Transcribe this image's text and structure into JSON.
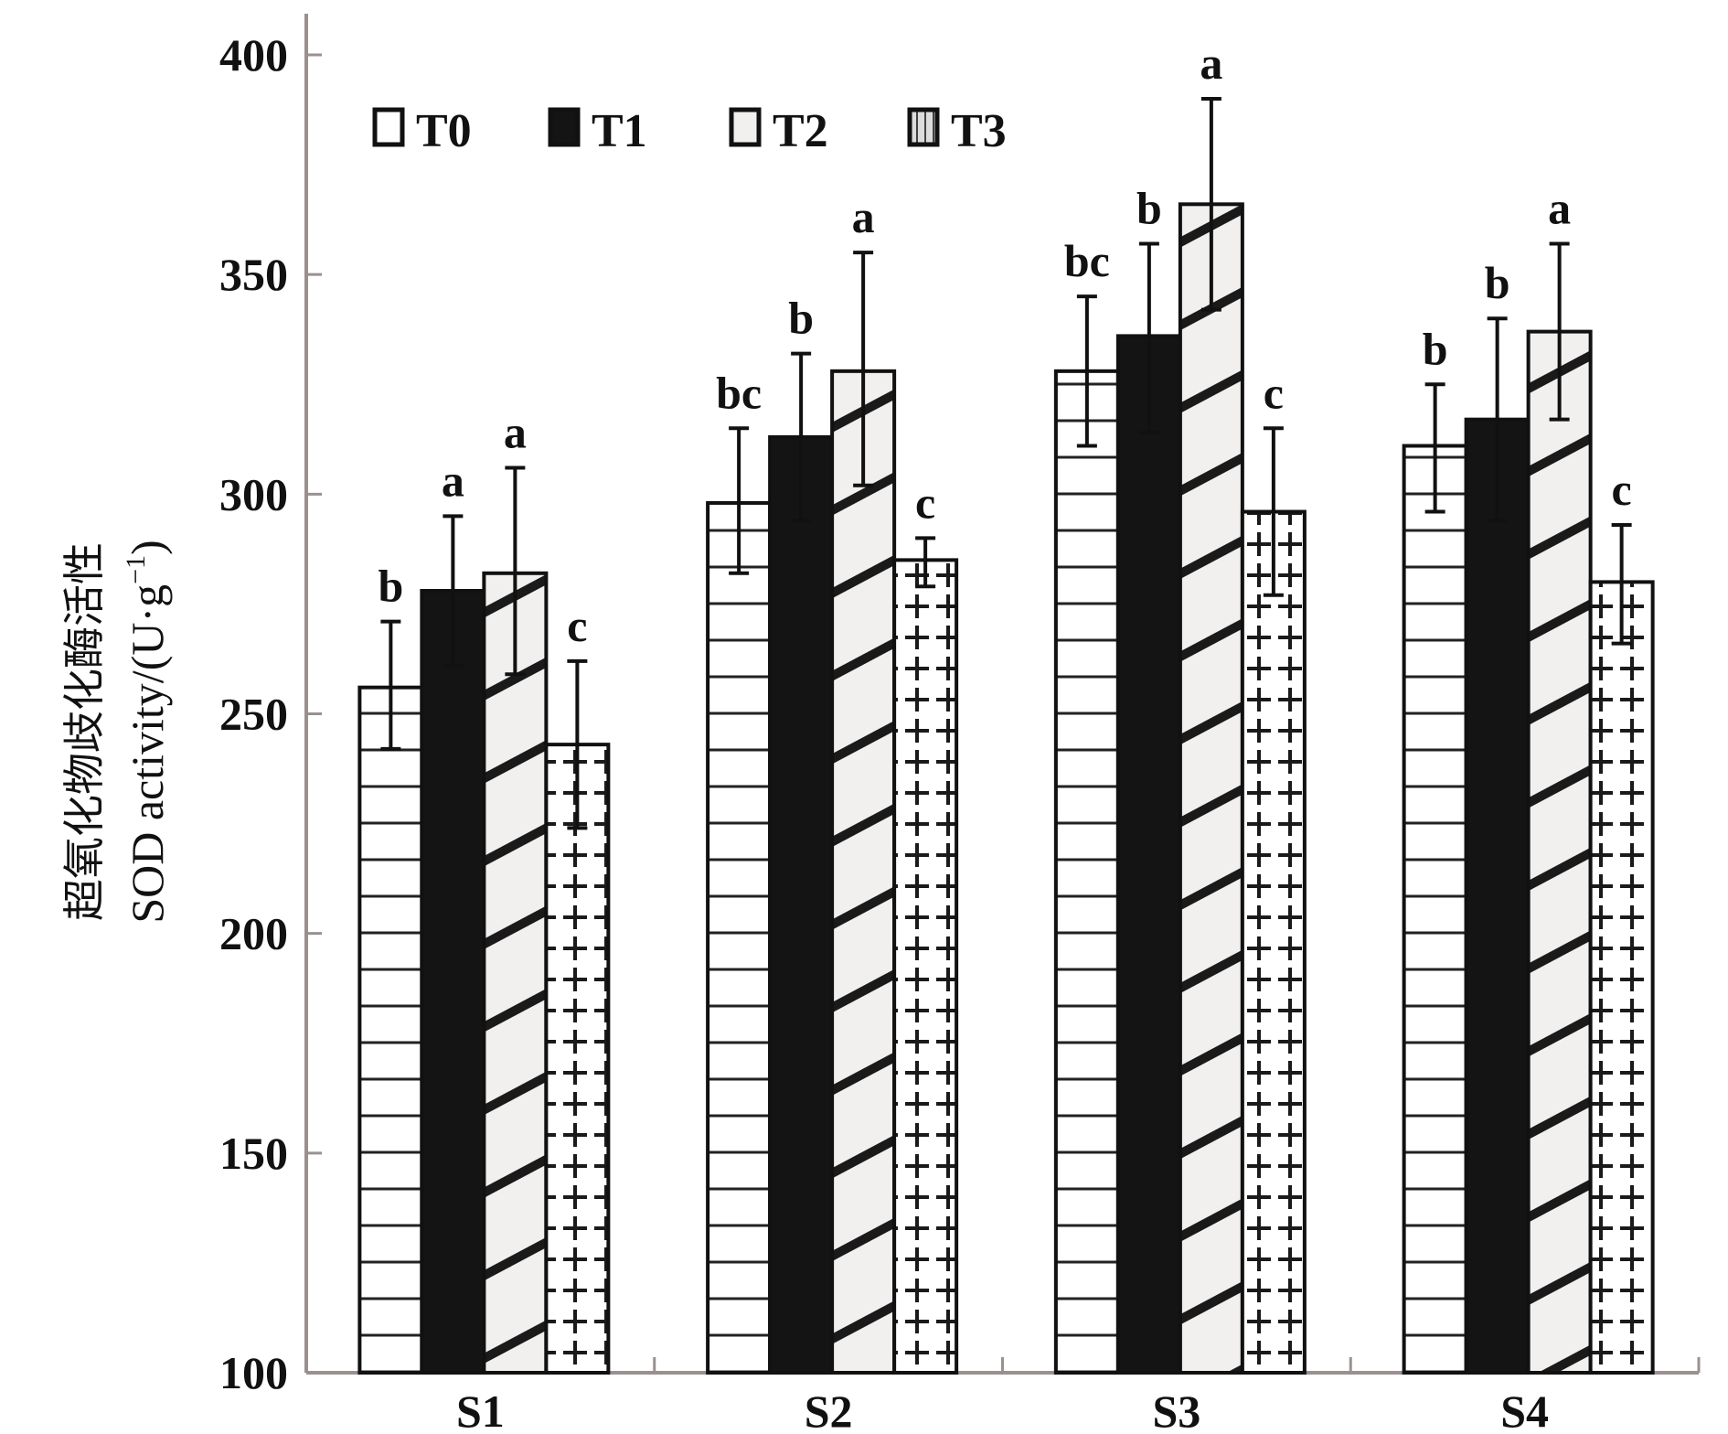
{
  "chart_data": {
    "type": "bar",
    "title": "",
    "xlabel": "",
    "ylabel_cn": "超氧化物歧化酶活性",
    "ylabel_en": "SOD activity/(U·g",
    "ylabel_sup": "−1",
    "ylabel_close": ")",
    "ylim": [
      100,
      400
    ],
    "yticks": [
      "100",
      "150",
      "200",
      "250",
      "300",
      "350",
      "400"
    ],
    "ytick_values": [
      100,
      150,
      200,
      250,
      300,
      350,
      400
    ],
    "grid": false,
    "legend_position": "top-left",
    "categories": [
      "S1",
      "S2",
      "S3",
      "S4"
    ],
    "series": [
      {
        "name": "T0",
        "pattern": "horizontal-lines",
        "values": [
          256,
          298,
          328,
          311
        ],
        "err_upper": [
          271,
          315,
          345,
          325
        ],
        "err_lower": [
          242,
          282,
          311,
          296
        ],
        "sig": [
          "b",
          "bc",
          "bc",
          "b"
        ]
      },
      {
        "name": "T1",
        "pattern": "solid-black",
        "values": [
          278,
          313,
          336,
          317
        ],
        "err_upper": [
          295,
          332,
          357,
          340
        ],
        "err_lower": [
          261,
          294,
          314,
          294
        ],
        "sig": [
          "a",
          "b",
          "b",
          "b"
        ]
      },
      {
        "name": "T2",
        "pattern": "diagonal-lines",
        "values": [
          282,
          328,
          366,
          337
        ],
        "err_upper": [
          306,
          355,
          390,
          357
        ],
        "err_lower": [
          259,
          302,
          342,
          317
        ],
        "sig": [
          "a",
          "a",
          "a",
          "a"
        ]
      },
      {
        "name": "T3",
        "pattern": "crosses",
        "values": [
          243,
          285,
          296,
          280
        ],
        "err_upper": [
          262,
          290,
          315,
          293
        ],
        "err_lower": [
          224,
          279,
          277,
          266
        ],
        "sig": [
          "c",
          "c",
          "c",
          "c"
        ]
      }
    ]
  },
  "colors": {
    "axis": "#9a9090",
    "ink": "#111111",
    "t2_fill": "#f2f0ef"
  }
}
